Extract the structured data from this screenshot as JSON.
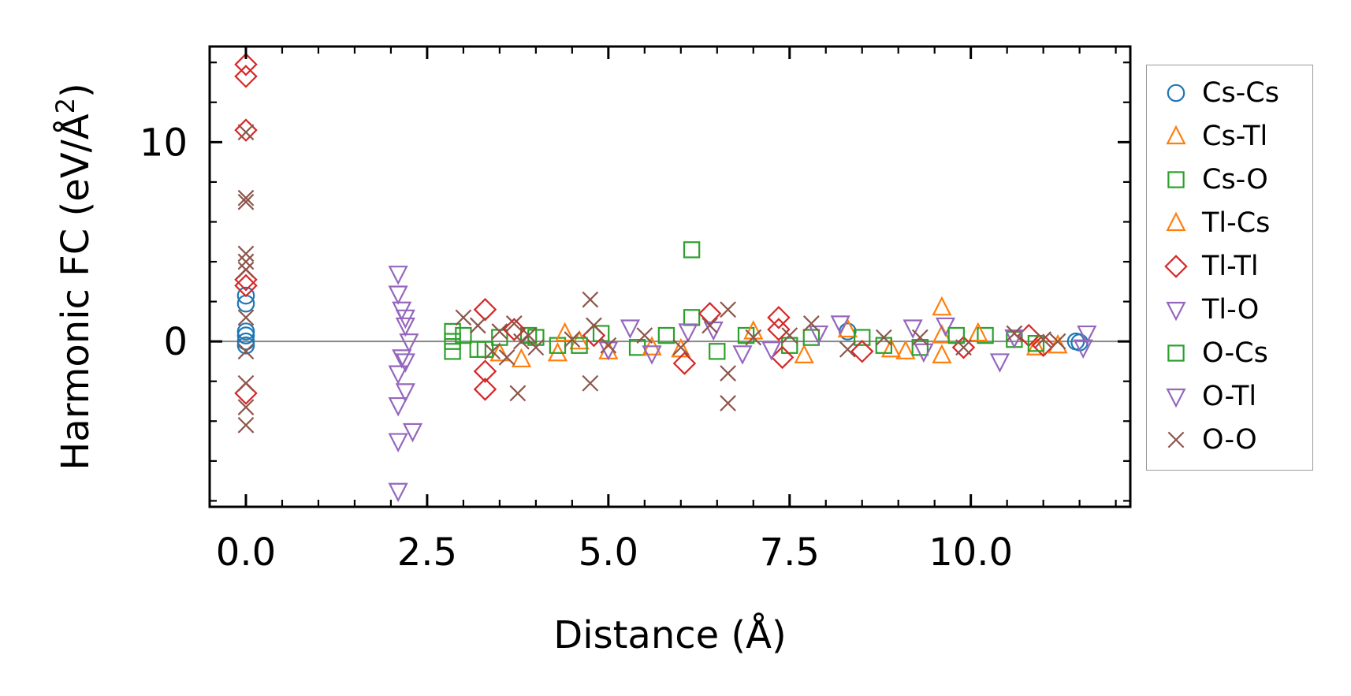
{
  "chart_data": {
    "type": "scatter",
    "title": "",
    "xlabel": "Distance (Å)",
    "ylabel_prefix": "Harmonic FC (eV/Å",
    "ylabel_sup": "2",
    "ylabel_suffix": ")",
    "xlim": [
      -0.5,
      12.2
    ],
    "ylim": [
      -8.3,
      14.8
    ],
    "xticks": [
      0.0,
      2.5,
      5.0,
      7.5,
      10.0
    ],
    "xtick_labels": [
      "0.0",
      "2.5",
      "5.0",
      "7.5",
      "10.0"
    ],
    "yticks": [
      0,
      10
    ],
    "ytick_labels": [
      "0",
      "10"
    ],
    "zero_line": 0,
    "legend_position": "right",
    "series": [
      {
        "name": "Cs-Cs",
        "marker": "circle",
        "color": "#1f77b4",
        "points": [
          [
            0.0,
            2.3
          ],
          [
            0.0,
            1.9
          ],
          [
            0.0,
            0.5
          ],
          [
            0.0,
            0.3
          ],
          [
            0.0,
            0.0
          ],
          [
            0.0,
            -0.2
          ],
          [
            8.3,
            0.5
          ],
          [
            11.45,
            0.0
          ],
          [
            11.5,
            -0.05
          ]
        ]
      },
      {
        "name": "Cs-Tl",
        "marker": "triangle-up",
        "color": "#ff7f0e",
        "points": [
          [
            3.5,
            -0.6
          ],
          [
            4.3,
            -0.6
          ],
          [
            4.6,
            0.0
          ],
          [
            5.0,
            -0.5
          ],
          [
            6.0,
            -0.4
          ],
          [
            7.7,
            -0.7
          ],
          [
            8.3,
            0.6
          ],
          [
            9.1,
            -0.5
          ],
          [
            9.6,
            1.7
          ],
          [
            9.6,
            0.3
          ],
          [
            9.6,
            -0.7
          ],
          [
            10.9,
            -0.3
          ]
        ]
      },
      {
        "name": "Cs-O",
        "marker": "square",
        "color": "#2ca02c",
        "points": [
          [
            2.85,
            0.5
          ],
          [
            2.85,
            0.0
          ],
          [
            2.85,
            -0.5
          ],
          [
            3.2,
            -0.4
          ],
          [
            3.5,
            0.2
          ],
          [
            3.9,
            0.3
          ],
          [
            4.3,
            -0.2
          ],
          [
            4.9,
            0.4
          ],
          [
            5.4,
            -0.3
          ],
          [
            6.15,
            4.6
          ],
          [
            6.15,
            1.2
          ],
          [
            6.9,
            0.3
          ],
          [
            7.5,
            -0.2
          ],
          [
            8.5,
            0.2
          ],
          [
            9.3,
            -0.3
          ],
          [
            10.2,
            0.3
          ],
          [
            10.6,
            0.1
          ]
        ]
      },
      {
        "name": "Tl-Cs",
        "marker": "triangle-up",
        "color": "#ff7f0e",
        "points": [
          [
            3.8,
            -0.9
          ],
          [
            4.4,
            0.4
          ],
          [
            5.6,
            -0.3
          ],
          [
            7.0,
            0.5
          ],
          [
            8.9,
            -0.4
          ],
          [
            10.1,
            0.4
          ],
          [
            11.2,
            -0.2
          ]
        ]
      },
      {
        "name": "Tl-Tl",
        "marker": "diamond",
        "color": "#d62728",
        "points": [
          [
            0.0,
            13.9
          ],
          [
            0.0,
            13.3
          ],
          [
            0.0,
            10.6
          ],
          [
            0.0,
            3.1
          ],
          [
            0.0,
            2.8
          ],
          [
            0.0,
            -2.6
          ],
          [
            3.3,
            1.6
          ],
          [
            3.3,
            -1.5
          ],
          [
            3.3,
            -2.4
          ],
          [
            3.7,
            0.6
          ],
          [
            4.8,
            0.3
          ],
          [
            6.05,
            -1.1
          ],
          [
            6.4,
            1.4
          ],
          [
            7.35,
            1.2
          ],
          [
            7.35,
            0.6
          ],
          [
            7.4,
            -0.8
          ],
          [
            8.5,
            -0.5
          ],
          [
            9.9,
            -0.3
          ],
          [
            10.8,
            0.3
          ],
          [
            11.0,
            -0.2
          ]
        ]
      },
      {
        "name": "Tl-O",
        "marker": "triangle-down",
        "color": "#9467bd",
        "points": [
          [
            2.1,
            3.4
          ],
          [
            2.1,
            2.4
          ],
          [
            2.15,
            1.6
          ],
          [
            2.2,
            0.8
          ],
          [
            2.25,
            0.0
          ],
          [
            2.15,
            -0.8
          ],
          [
            2.1,
            -1.6
          ],
          [
            2.2,
            -2.5
          ],
          [
            2.1,
            -3.2
          ],
          [
            2.3,
            -4.5
          ],
          [
            2.1,
            -5.0
          ],
          [
            2.1,
            -7.5
          ],
          [
            5.3,
            0.7
          ],
          [
            5.6,
            -0.6
          ],
          [
            6.45,
            0.6
          ],
          [
            7.25,
            -0.4
          ],
          [
            8.2,
            0.9
          ],
          [
            9.35,
            -0.5
          ],
          [
            9.65,
            0.8
          ],
          [
            10.4,
            -1.0
          ],
          [
            11.6,
            0.4
          ]
        ]
      },
      {
        "name": "O-Cs",
        "marker": "square",
        "color": "#2ca02c",
        "points": [
          [
            3.0,
            0.3
          ],
          [
            3.3,
            -0.4
          ],
          [
            4.0,
            0.2
          ],
          [
            4.6,
            -0.2
          ],
          [
            5.8,
            0.3
          ],
          [
            6.5,
            -0.5
          ],
          [
            7.8,
            0.2
          ],
          [
            8.8,
            -0.2
          ],
          [
            9.8,
            0.3
          ],
          [
            10.9,
            -0.1
          ]
        ]
      },
      {
        "name": "O-Tl",
        "marker": "triangle-down",
        "color": "#9467bd",
        "points": [
          [
            2.2,
            1.2
          ],
          [
            2.2,
            -1.0
          ],
          [
            5.0,
            -0.4
          ],
          [
            6.1,
            0.5
          ],
          [
            6.85,
            -0.6
          ],
          [
            7.9,
            0.4
          ],
          [
            9.2,
            0.7
          ],
          [
            10.6,
            0.2
          ],
          [
            11.55,
            -0.3
          ]
        ]
      },
      {
        "name": "O-O",
        "marker": "x",
        "color": "#8c564b",
        "points": [
          [
            0.0,
            10.5
          ],
          [
            0.0,
            7.2
          ],
          [
            0.0,
            7.0
          ],
          [
            0.0,
            4.4
          ],
          [
            0.0,
            4.0
          ],
          [
            0.0,
            3.6
          ],
          [
            0.0,
            1.2
          ],
          [
            0.0,
            -0.5
          ],
          [
            0.0,
            -2.1
          ],
          [
            0.0,
            -3.3
          ],
          [
            0.0,
            -4.2
          ],
          [
            3.0,
            1.2
          ],
          [
            3.2,
            0.8
          ],
          [
            3.4,
            -0.5
          ],
          [
            3.5,
            0.5
          ],
          [
            3.6,
            -0.8
          ],
          [
            3.7,
            0.9
          ],
          [
            3.75,
            -2.6
          ],
          [
            3.8,
            0.0
          ],
          [
            3.9,
            0.3
          ],
          [
            4.0,
            -0.3
          ],
          [
            4.5,
            0.1
          ],
          [
            4.75,
            2.1
          ],
          [
            4.75,
            -2.1
          ],
          [
            4.8,
            0.8
          ],
          [
            5.0,
            -0.2
          ],
          [
            5.5,
            0.3
          ],
          [
            6.0,
            -0.3
          ],
          [
            6.4,
            0.8
          ],
          [
            6.65,
            1.6
          ],
          [
            6.65,
            -1.6
          ],
          [
            6.65,
            -3.1
          ],
          [
            7.0,
            0.2
          ],
          [
            7.5,
            0.3
          ],
          [
            7.8,
            0.9
          ],
          [
            8.3,
            -0.4
          ],
          [
            8.8,
            0.2
          ],
          [
            9.3,
            0.2
          ],
          [
            9.9,
            -0.3
          ],
          [
            10.6,
            0.4
          ],
          [
            11.0,
            0.1
          ],
          [
            11.2,
            0.0
          ]
        ]
      }
    ]
  }
}
